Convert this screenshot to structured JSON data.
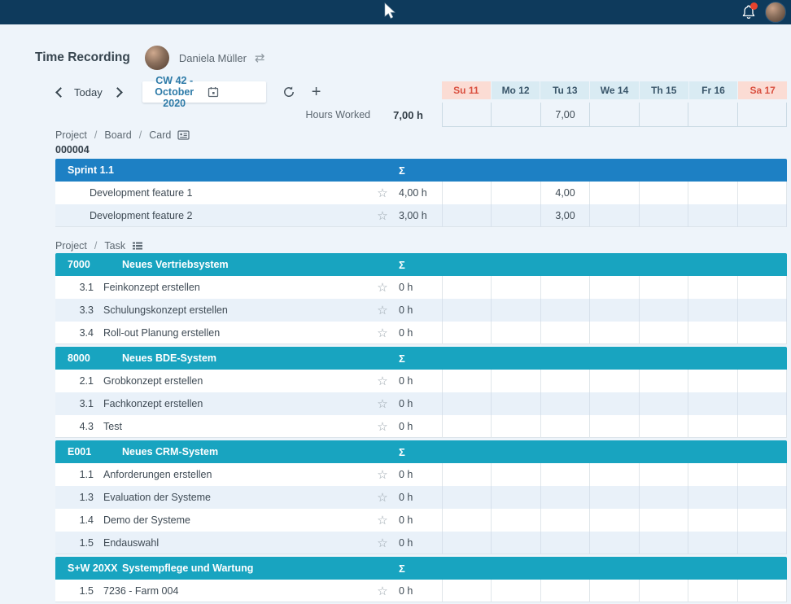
{
  "header": {
    "title": "Time Recording",
    "user_name": "Daniela Müller"
  },
  "toolbar": {
    "today_label": "Today",
    "week_selector_value": "CW 42 - October 2020"
  },
  "summary": {
    "hours_worked_label": "Hours Worked",
    "hours_worked_value": "7,00 h"
  },
  "week": {
    "days": [
      {
        "label": "Su 11",
        "weekend": true,
        "total": ""
      },
      {
        "label": "Mo 12",
        "weekend": false,
        "total": ""
      },
      {
        "label": "Tu 13",
        "weekend": false,
        "total": "7,00"
      },
      {
        "label": "We 14",
        "weekend": false,
        "total": ""
      },
      {
        "label": "Th 15",
        "weekend": false,
        "total": ""
      },
      {
        "label": "Fr 16",
        "weekend": false,
        "total": ""
      },
      {
        "label": "Sa 17",
        "weekend": true,
        "total": ""
      }
    ]
  },
  "sum_symbol": "Σ",
  "colors": {
    "topbar": "#0e3a5c",
    "board_group_header": "#1d80c4",
    "task_group_header": "#18a4c0",
    "weekend_text": "#d95040",
    "notification_badge": "#e8432e"
  },
  "sections": [
    {
      "breadcrumb": [
        "Project",
        "Board",
        "Card"
      ],
      "icon": "card-icon",
      "board_id": "000004",
      "groups": [
        {
          "code": "",
          "title": "Sprint 1.1",
          "rows": [
            {
              "number": "",
              "label": "Development feature 1",
              "total": "4,00 h",
              "days": [
                "",
                "",
                "4,00",
                "",
                "",
                "",
                ""
              ]
            },
            {
              "number": "",
              "label": "Development feature 2",
              "total": "3,00 h",
              "days": [
                "",
                "",
                "3,00",
                "",
                "",
                "",
                ""
              ]
            }
          ]
        }
      ]
    },
    {
      "breadcrumb": [
        "Project",
        "Task"
      ],
      "icon": "list-icon",
      "board_id": "",
      "groups": [
        {
          "code": "7000",
          "title": "Neues Vertriebsystem",
          "rows": [
            {
              "number": "3.1",
              "label": "Feinkonzept erstellen",
              "total": "0 h",
              "days": [
                "",
                "",
                "",
                "",
                "",
                "",
                ""
              ]
            },
            {
              "number": "3.3",
              "label": "Schulungskonzept erstellen",
              "total": "0 h",
              "days": [
                "",
                "",
                "",
                "",
                "",
                "",
                ""
              ]
            },
            {
              "number": "3.4",
              "label": "Roll-out Planung erstellen",
              "total": "0 h",
              "days": [
                "",
                "",
                "",
                "",
                "",
                "",
                ""
              ]
            }
          ]
        },
        {
          "code": "8000",
          "title": "Neues BDE-System",
          "rows": [
            {
              "number": "2.1",
              "label": "Grobkonzept erstellen",
              "total": "0 h",
              "days": [
                "",
                "",
                "",
                "",
                "",
                "",
                ""
              ]
            },
            {
              "number": "3.1",
              "label": "Fachkonzept erstellen",
              "total": "0 h",
              "days": [
                "",
                "",
                "",
                "",
                "",
                "",
                ""
              ]
            },
            {
              "number": "4.3",
              "label": "Test",
              "total": "0 h",
              "days": [
                "",
                "",
                "",
                "",
                "",
                "",
                ""
              ]
            }
          ]
        },
        {
          "code": "E001",
          "title": "Neues CRM-System",
          "rows": [
            {
              "number": "1.1",
              "label": "Anforderungen erstellen",
              "total": "0 h",
              "days": [
                "",
                "",
                "",
                "",
                "",
                "",
                ""
              ]
            },
            {
              "number": "1.3",
              "label": "Evaluation der Systeme",
              "total": "0 h",
              "days": [
                "",
                "",
                "",
                "",
                "",
                "",
                ""
              ]
            },
            {
              "number": "1.4",
              "label": "Demo der Systeme",
              "total": "0 h",
              "days": [
                "",
                "",
                "",
                "",
                "",
                "",
                ""
              ]
            },
            {
              "number": "1.5",
              "label": "Endauswahl",
              "total": "0 h",
              "days": [
                "",
                "",
                "",
                "",
                "",
                "",
                ""
              ]
            }
          ]
        },
        {
          "code": "S+W 20XX",
          "title": "Systempflege und Wartung",
          "rows": [
            {
              "number": "1.5",
              "label": "7236 - Farm 004",
              "total": "0 h",
              "days": [
                "",
                "",
                "",
                "",
                "",
                "",
                ""
              ]
            }
          ]
        }
      ]
    }
  ]
}
